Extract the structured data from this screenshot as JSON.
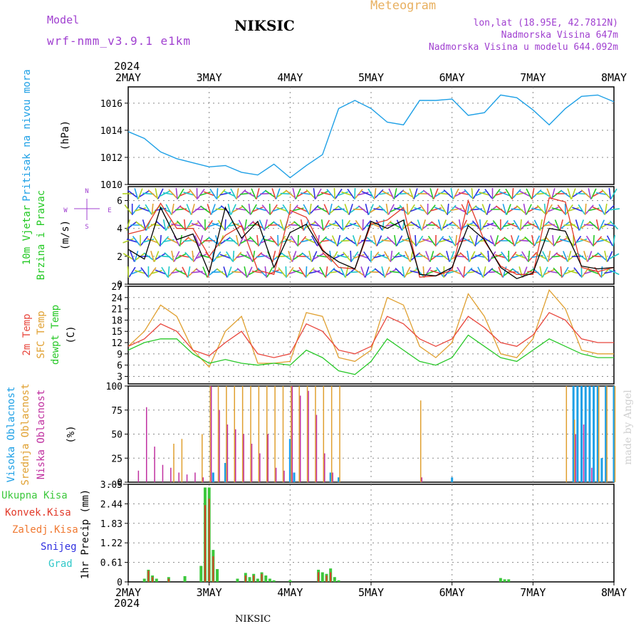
{
  "header": {
    "station": "NIKSIC",
    "model_label": "Model",
    "model_name": "wrf-nmm_v3.9.1 e1km",
    "meteogram": "Meteogram",
    "lonlat": "lon,lat (18.95E, 42.7812N)",
    "altitude": "Nadmorska Visina 647m",
    "model_altitude": "Nadmorska Visina u modelu 644.092m",
    "footer_station": "NIKSIC",
    "watermark": "made by Angel"
  },
  "time_axis": {
    "year": "2024",
    "ticks": [
      "2MAY",
      "3MAY",
      "4MAY",
      "5MAY",
      "6MAY",
      "7MAY",
      "8MAY"
    ]
  },
  "colors": {
    "pressure": "#1ea0e6",
    "wind_speed": "#000000",
    "gust": "#e23a2a",
    "t2m": "#e8463c",
    "sfc": "#e0a030",
    "dewpt": "#28c828",
    "cloud_high": "#1ea0e6",
    "cloud_mid": "#e0a030",
    "cloud_low": "#c030a0",
    "precip_total": "#3cc83c",
    "precip_conv": "#e23a2a",
    "precip_frozen": "#f07830",
    "snow": "#3030e0",
    "hail": "#30c8c8",
    "wind_label": "#20c820",
    "compass": "#a040d0"
  },
  "panels": {
    "pressure": {
      "label": "Pritisak na nivou mora",
      "unit": "(hPa)"
    },
    "wind": {
      "label1": "10m Vjetar",
      "label2": "Brzina i Pravac",
      "unit": "(m/s)",
      "compass_n": "N",
      "compass_s": "S",
      "compass_w": "W",
      "compass_e": "E"
    },
    "temp": {
      "label_t2m": "2m Temp",
      "label_sfc": "SFC Temp",
      "label_dew": "dewpt Temp",
      "unit": "(C)"
    },
    "cloud": {
      "label_high": "Visoka Oblacnost",
      "label_mid": "Srednja Oblacnost",
      "label_low": "Niska Oblacnost",
      "unit": "(%)"
    },
    "precip": {
      "label": "1hr Precip",
      "unit": "(mm)",
      "legend": [
        "Ukupna Kisa",
        "Konvek.Kisa",
        "Zaledj.Kisa",
        "Snijeg",
        "Grad"
      ]
    }
  },
  "chart_data": [
    {
      "type": "line",
      "title": "Pritisak na nivou mora",
      "ylabel": "(hPa)",
      "ylim": [
        1010,
        1017.2
      ],
      "yticks": [
        "1010",
        "1012",
        "1014",
        "1016"
      ],
      "x": [
        0,
        0.2,
        0.4,
        0.6,
        0.8,
        1.0,
        1.2,
        1.4,
        1.6,
        1.8,
        2.0,
        2.2,
        2.4,
        2.6,
        2.8,
        3.0,
        3.2,
        3.4,
        3.6,
        3.8,
        4.0,
        4.2,
        4.4,
        4.6,
        4.8,
        5.0,
        5.2,
        5.4,
        5.6,
        5.8,
        6.0
      ],
      "series": [
        {
          "values": [
            1013.9,
            1013.4,
            1012.4,
            1011.9,
            1011.6,
            1011.3,
            1011.4,
            1010.9,
            1010.7,
            1011.5,
            1010.5,
            1011.4,
            1012.2,
            1015.6,
            1016.2,
            1015.6,
            1014.6,
            1014.4,
            1016.2,
            1016.2,
            1016.3,
            1015.1,
            1015.3,
            1016.6,
            1016.4,
            1015.5,
            1014.4,
            1015.6,
            1016.5,
            1016.6,
            1016.1
          ]
        }
      ]
    },
    {
      "type": "line",
      "title": "10m Vjetar Brzina i Pravac",
      "ylabel": "(m/s)",
      "ylim": [
        0,
        7
      ],
      "yticks": [
        "0",
        "2",
        "4",
        "6"
      ],
      "x": [
        0,
        0.2,
        0.4,
        0.6,
        0.8,
        1.0,
        1.2,
        1.4,
        1.6,
        1.8,
        2.0,
        2.2,
        2.4,
        2.6,
        2.8,
        3.0,
        3.2,
        3.4,
        3.6,
        3.8,
        4.0,
        4.2,
        4.4,
        4.6,
        4.8,
        5.0,
        5.2,
        5.4,
        5.6,
        5.8,
        6.0
      ],
      "series": [
        {
          "name": "speed",
          "values": [
            2.5,
            1.8,
            5.5,
            3.2,
            3.6,
            0.8,
            5.5,
            3.3,
            4.5,
            1.2,
            3.7,
            4.3,
            2.4,
            1.6,
            1.1,
            4.5,
            4.0,
            4.6,
            0.7,
            0.6,
            1.2,
            4.2,
            3.2,
            1.2,
            0.4,
            0.8,
            4.0,
            3.8,
            1.3,
            1.1,
            1.2
          ]
        },
        {
          "name": "gust",
          "values": [
            3.6,
            3.9,
            5.8,
            4.0,
            4.0,
            2.0,
            3.5,
            4.2,
            1.0,
            0.7,
            5.3,
            4.8,
            2.5,
            1.2,
            1.1,
            4.3,
            4.6,
            5.5,
            0.5,
            0.6,
            1.0,
            6.0,
            3.1,
            1.3,
            0.7,
            0.7,
            6.2,
            5.9,
            1.2,
            0.9,
            1.2
          ]
        }
      ]
    },
    {
      "type": "line",
      "title": "2m Temp / SFC Temp / dewpt Temp",
      "ylabel": "(C)",
      "ylim": [
        1,
        27
      ],
      "yticks": [
        "3",
        "6",
        "9",
        "12",
        "15",
        "18",
        "21",
        "24",
        "27"
      ],
      "x": [
        0,
        0.2,
        0.4,
        0.6,
        0.8,
        1.0,
        1.2,
        1.4,
        1.6,
        1.8,
        2.0,
        2.2,
        2.4,
        2.6,
        2.8,
        3.0,
        3.2,
        3.4,
        3.6,
        3.8,
        4.0,
        4.2,
        4.4,
        4.6,
        4.8,
        5.0,
        5.2,
        5.4,
        5.6,
        5.8,
        6.0
      ],
      "series": [
        {
          "name": "2m Temp",
          "values": [
            11,
            13,
            17,
            15,
            10,
            8.5,
            12,
            15,
            9,
            8,
            9,
            17,
            15,
            10,
            9,
            11,
            19,
            17,
            13,
            11,
            13,
            19,
            16,
            12,
            11,
            14,
            20,
            18,
            13,
            12,
            12
          ]
        },
        {
          "name": "SFC Temp",
          "values": [
            11,
            15,
            22,
            19,
            10,
            5.5,
            15,
            19,
            6.5,
            6.5,
            7,
            20,
            19,
            8,
            7,
            10,
            24,
            22,
            11,
            8,
            12,
            25,
            19,
            9,
            8,
            13,
            26,
            21,
            10,
            9,
            9
          ]
        },
        {
          "name": "dewpt Temp",
          "values": [
            10,
            12,
            13,
            13,
            9,
            6.5,
            7.5,
            6.5,
            6,
            6.5,
            6,
            10,
            8,
            4.5,
            3.5,
            7,
            13,
            10,
            7,
            6,
            8,
            14,
            11,
            8,
            7,
            10,
            13,
            11,
            9,
            8,
            8
          ]
        }
      ]
    },
    {
      "type": "bar",
      "title": "Oblacnost",
      "ylabel": "(%)",
      "ylim": [
        0,
        100
      ],
      "yticks": [
        "0",
        "25",
        "50",
        "75",
        "100"
      ],
      "series": [
        {
          "name": "Visoka Oblacnost",
          "x": [
            1.05,
            1.2,
            2.0,
            2.05,
            2.5,
            2.6,
            4.0,
            5.5,
            5.55,
            5.6,
            5.65,
            5.7,
            5.75,
            5.8,
            5.85,
            5.9,
            6.0
          ],
          "values": [
            10,
            20,
            45,
            10,
            10,
            5,
            5,
            100,
            100,
            100,
            100,
            100,
            100,
            100,
            25,
            100,
            100
          ]
        },
        {
          "name": "Srednja Oblacnost",
          "x": [
            0.55,
            0.65,
            0.9,
            1.0,
            1.1,
            1.2,
            1.3,
            1.4,
            1.5,
            1.6,
            1.7,
            1.8,
            1.9,
            2.0,
            2.1,
            2.2,
            2.3,
            2.4,
            2.5,
            2.6,
            3.6,
            5.4,
            5.5,
            5.8,
            5.9,
            6.0
          ],
          "values": [
            40,
            45,
            50,
            100,
            100,
            100,
            100,
            100,
            100,
            100,
            100,
            100,
            100,
            100,
            100,
            100,
            100,
            100,
            100,
            100,
            85,
            100,
            65,
            100,
            100,
            100
          ]
        },
        {
          "name": "Niska Oblacnost",
          "x": [
            0.1,
            0.2,
            0.3,
            0.4,
            0.5,
            0.6,
            0.7,
            0.8,
            0.9,
            1.0,
            1.1,
            1.2,
            1.3,
            1.4,
            1.5,
            1.6,
            1.7,
            1.8,
            1.9,
            2.0,
            2.1,
            2.2,
            2.3,
            2.4,
            2.5,
            3.6,
            5.5,
            5.6,
            5.7
          ],
          "values": [
            12,
            78,
            37,
            18,
            15,
            10,
            8,
            10,
            5,
            100,
            75,
            60,
            55,
            50,
            40,
            30,
            50,
            15,
            12,
            100,
            90,
            95,
            70,
            30,
            10,
            5,
            50,
            60,
            15
          ]
        }
      ]
    },
    {
      "type": "bar",
      "title": "1hr Precip",
      "ylabel": "(mm)",
      "ylim": [
        0,
        3.05
      ],
      "yticks": [
        "0",
        "0.61",
        "1.22",
        "1.83",
        "2.44",
        "3.05"
      ],
      "series": [
        {
          "name": "Ukupna Kisa",
          "x": [
            0.2,
            0.25,
            0.3,
            0.35,
            0.5,
            0.7,
            0.9,
            0.95,
            1.0,
            1.05,
            1.1,
            1.35,
            1.45,
            1.5,
            1.55,
            1.6,
            1.65,
            1.7,
            1.75,
            1.8,
            2.0,
            2.35,
            2.4,
            2.45,
            2.5,
            2.55,
            2.6,
            4.6,
            4.65,
            4.7
          ],
          "values": [
            0.1,
            0.38,
            0.2,
            0.1,
            0.15,
            0.18,
            0.5,
            2.95,
            2.95,
            1.0,
            0.4,
            0.1,
            0.28,
            0.15,
            0.25,
            0.1,
            0.3,
            0.2,
            0.1,
            0.05,
            0.05,
            0.38,
            0.3,
            0.25,
            0.42,
            0.15,
            0.05,
            0.12,
            0.08,
            0.08
          ]
        },
        {
          "name": "Konvek.Kisa",
          "x": [
            0.25,
            0.3,
            0.5,
            0.95,
            1.0,
            1.05,
            1.45,
            1.55,
            1.65,
            2.35,
            2.45,
            2.5
          ],
          "values": [
            0.35,
            0.15,
            0.1,
            2.4,
            2.6,
            0.8,
            0.2,
            0.2,
            0.25,
            0.3,
            0.2,
            0.3
          ]
        }
      ]
    }
  ]
}
